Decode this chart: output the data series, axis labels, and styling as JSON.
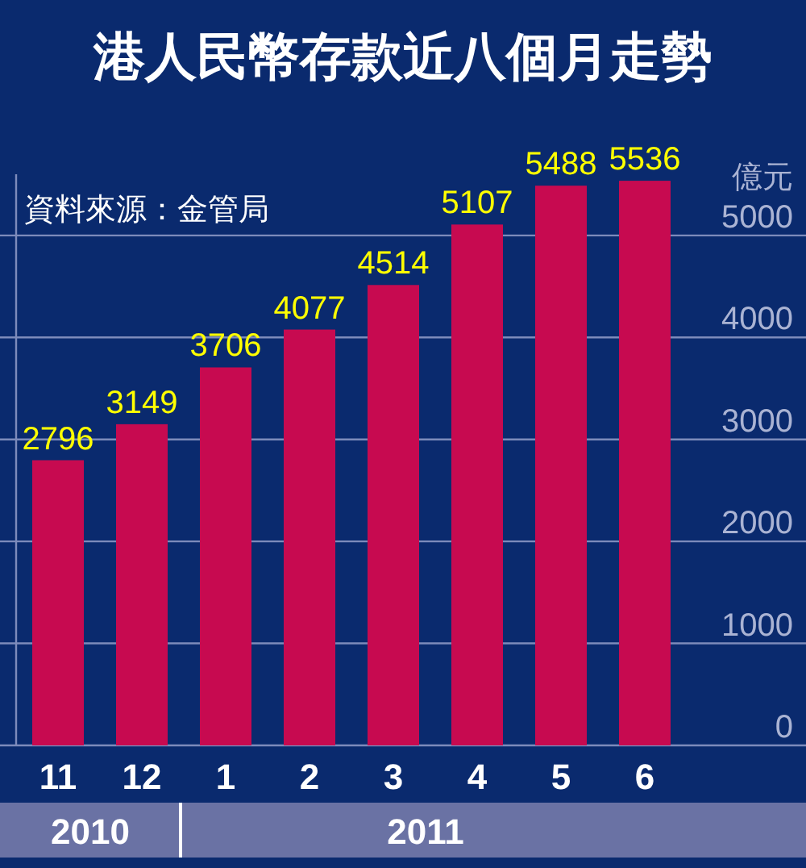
{
  "chart_data": {
    "type": "bar",
    "title": "港人民幣存款近八個月走勢",
    "ylabel": "億元",
    "categories": [
      "11",
      "12",
      "1",
      "2",
      "3",
      "4",
      "5",
      "6"
    ],
    "values": [
      2796,
      3149,
      3706,
      4077,
      4514,
      5107,
      5488,
      5536
    ],
    "color": "#c70a50",
    "data_labels": true,
    "ylim": [
      0,
      5600
    ],
    "yticks": [
      0,
      1000,
      2000,
      3000,
      4000,
      5000
    ],
    "grid": "y",
    "annotations": [
      "資料來源：金管局",
      "2010",
      "2011"
    ]
  }
}
